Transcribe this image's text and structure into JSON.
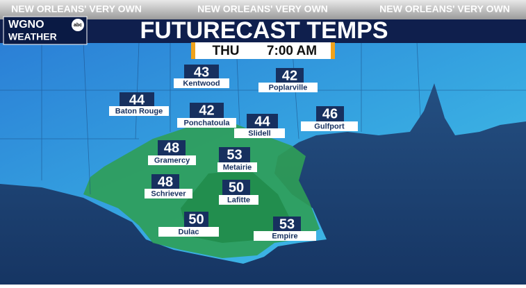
{
  "header": {
    "ticker": [
      "NEW ORLEANS' VERY OWN",
      "NEW ORLEANS' VERY OWN",
      "NEW ORLEANS' VERY OWN"
    ],
    "logo": {
      "station": "WGNO",
      "network": "abc",
      "brand": "WEATHER"
    },
    "title": "FUTURECAST TEMPS"
  },
  "time": {
    "day": "THU",
    "time": "7:00 AM"
  },
  "cities": [
    {
      "name": "Kentwood",
      "temp": 43
    },
    {
      "name": "Poplarville",
      "temp": 42
    },
    {
      "name": "Baton Rouge",
      "temp": 44
    },
    {
      "name": "Ponchatoula",
      "temp": 42
    },
    {
      "name": "Slidell",
      "temp": 44
    },
    {
      "name": "Gulfport",
      "temp": 46
    },
    {
      "name": "Gramercy",
      "temp": 48
    },
    {
      "name": "Metairie",
      "temp": 53
    },
    {
      "name": "Schriever",
      "temp": 48
    },
    {
      "name": "Lafitte",
      "temp": 50
    },
    {
      "name": "Dulac",
      "temp": 50
    },
    {
      "name": "Empire",
      "temp": 53
    }
  ]
}
